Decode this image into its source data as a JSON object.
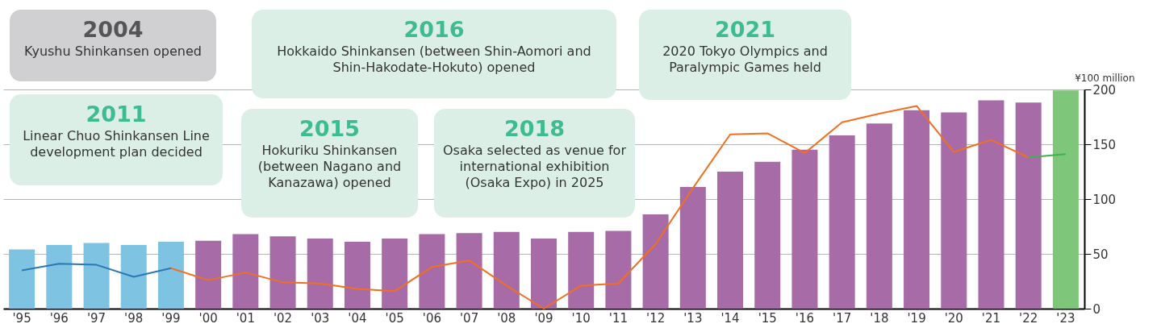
{
  "chart_data": {
    "type": "bar",
    "categories": [
      "'95",
      "'96",
      "'97",
      "'98",
      "'99",
      "'00",
      "'01",
      "'02",
      "'03",
      "'04",
      "'05",
      "'06",
      "'07",
      "'08",
      "'09",
      "'10",
      "'11",
      "'12",
      "'13",
      "'14",
      "'15",
      "'16",
      "'17",
      "'18",
      "'19",
      "'20",
      "'21",
      "'22",
      "'23"
    ],
    "series": [
      {
        "values": [
          54,
          58,
          60,
          58,
          61,
          62,
          68,
          66,
          64,
          61,
          64,
          68,
          69,
          70,
          64,
          70,
          71,
          86,
          111,
          125,
          134,
          145,
          158,
          169,
          181,
          179,
          190,
          188,
          199
        ],
        "colors": [
          "#7fc3e2",
          "#7fc3e2",
          "#7fc3e2",
          "#7fc3e2",
          "#7fc3e2",
          "#a76ba7",
          "#a76ba7",
          "#a76ba7",
          "#a76ba7",
          "#a76ba7",
          "#a76ba7",
          "#a76ba7",
          "#a76ba7",
          "#a76ba7",
          "#a76ba7",
          "#a76ba7",
          "#a76ba7",
          "#a76ba7",
          "#a76ba7",
          "#a76ba7",
          "#a76ba7",
          "#a76ba7",
          "#a76ba7",
          "#a76ba7",
          "#a76ba7",
          "#a76ba7",
          "#a76ba7",
          "#a76ba7",
          "#7dc67a"
        ]
      },
      {
        "type": "line",
        "color": "#2a78b6",
        "values": [
          35,
          41,
          40,
          29,
          37,
          null,
          null,
          null,
          null,
          null,
          null,
          null,
          null,
          null,
          null,
          null,
          null,
          null,
          null,
          null,
          null,
          null,
          null,
          null,
          null,
          null,
          null,
          null,
          null
        ]
      },
      {
        "type": "line",
        "color": "#f26f21",
        "values": [
          null,
          null,
          null,
          null,
          37,
          26,
          33,
          24,
          23,
          18,
          16,
          38,
          44,
          21,
          0,
          21,
          23,
          59,
          110,
          159,
          160,
          142,
          170,
          178,
          185,
          143,
          154,
          138,
          null
        ]
      },
      {
        "type": "line",
        "color": "#3cb44b",
        "values": [
          null,
          null,
          null,
          null,
          null,
          null,
          null,
          null,
          null,
          null,
          null,
          null,
          null,
          null,
          null,
          null,
          null,
          null,
          null,
          null,
          null,
          null,
          null,
          null,
          null,
          null,
          null,
          138,
          141
        ]
      }
    ],
    "ylabel": "¥100 million",
    "ylim": [
      0,
      200
    ],
    "yticks": [
      0,
      50,
      100,
      150,
      200
    ],
    "grid": "y",
    "marker": "none",
    "line_style": "solid",
    "annotations": [
      "2004\nKyushu Shinkansen opened",
      "2016\nHokkaido Shinkansen (between Shin-Aomori and Shin-Hakodate-Hokuto) opened",
      "2021\n2020 Tokyo Olympics and Paralympic Games held",
      "2011\nLinear Chuo Shinkansen Line development plan decided",
      "2015\nHokuriku Shinkansen (between Nagano and Kanazawa) opened",
      "2018\nOsaka selected as venue for international exhibition (Osaka Expo) in 2025"
    ]
  }
}
